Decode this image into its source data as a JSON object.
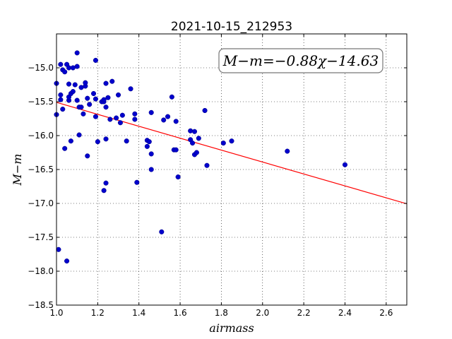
{
  "chart_data": {
    "type": "scatter",
    "title": "2021-10-15_212953",
    "xlabel": "airmass",
    "ylabel": "M−m",
    "xlim": [
      1.0,
      2.7
    ],
    "ylim": [
      -18.5,
      -14.5
    ],
    "y_inverted": true,
    "grid": true,
    "x_ticks": [
      "1.0",
      "1.2",
      "1.4",
      "1.6",
      "1.8",
      "2.0",
      "2.2",
      "2.4",
      "2.6"
    ],
    "y_ticks": [
      "−15.0",
      "−15.5",
      "−16.0",
      "−16.5",
      "−17.0",
      "−17.5",
      "−18.0",
      "−18.5"
    ],
    "annotation": "M−m=−0.88χ−14.63",
    "fit_line": {
      "slope": -0.88,
      "intercept": -14.63,
      "color": "#ff0000"
    },
    "marker_color": "#0000cc",
    "points": [
      [
        1.0,
        -15.23
      ],
      [
        1.0,
        -15.69
      ],
      [
        1.01,
        -17.68
      ],
      [
        1.02,
        -15.4
      ],
      [
        1.02,
        -15.47
      ],
      [
        1.02,
        -14.95
      ],
      [
        1.03,
        -15.61
      ],
      [
        1.03,
        -15.03
      ],
      [
        1.04,
        -15.06
      ],
      [
        1.04,
        -16.19
      ],
      [
        1.05,
        -17.85
      ],
      [
        1.05,
        -14.95
      ],
      [
        1.06,
        -15.0
      ],
      [
        1.06,
        -15.48
      ],
      [
        1.06,
        -15.43
      ],
      [
        1.06,
        -15.24
      ],
      [
        1.07,
        -15.38
      ],
      [
        1.07,
        -16.08
      ],
      [
        1.08,
        -15.35
      ],
      [
        1.08,
        -15.0
      ],
      [
        1.09,
        -15.25
      ],
      [
        1.1,
        -14.78
      ],
      [
        1.1,
        -14.98
      ],
      [
        1.1,
        -15.48
      ],
      [
        1.11,
        -15.58
      ],
      [
        1.11,
        -15.99
      ],
      [
        1.12,
        -15.29
      ],
      [
        1.12,
        -15.58
      ],
      [
        1.13,
        -15.68
      ],
      [
        1.14,
        -15.27
      ],
      [
        1.14,
        -15.22
      ],
      [
        1.15,
        -15.45
      ],
      [
        1.15,
        -16.3
      ],
      [
        1.16,
        -15.54
      ],
      [
        1.18,
        -15.38
      ],
      [
        1.19,
        -15.72
      ],
      [
        1.19,
        -15.46
      ],
      [
        1.19,
        -14.89
      ],
      [
        1.2,
        -16.09
      ],
      [
        1.22,
        -15.5
      ],
      [
        1.23,
        -16.81
      ],
      [
        1.23,
        -15.5
      ],
      [
        1.23,
        -15.47
      ],
      [
        1.24,
        -15.58
      ],
      [
        1.24,
        -16.7
      ],
      [
        1.24,
        -15.23
      ],
      [
        1.24,
        -16.05
      ],
      [
        1.25,
        -15.44
      ],
      [
        1.26,
        -15.76
      ],
      [
        1.27,
        -15.2
      ],
      [
        1.29,
        -15.74
      ],
      [
        1.3,
        -15.4
      ],
      [
        1.31,
        -15.81
      ],
      [
        1.32,
        -15.7
      ],
      [
        1.34,
        -16.08
      ],
      [
        1.36,
        -15.31
      ],
      [
        1.38,
        -15.68
      ],
      [
        1.38,
        -15.76
      ],
      [
        1.39,
        -16.69
      ],
      [
        1.44,
        -16.07
      ],
      [
        1.44,
        -16.16
      ],
      [
        1.45,
        -16.09
      ],
      [
        1.46,
        -16.5
      ],
      [
        1.46,
        -16.27
      ],
      [
        1.46,
        -15.66
      ],
      [
        1.51,
        -17.42
      ],
      [
        1.52,
        -15.77
      ],
      [
        1.54,
        -15.72
      ],
      [
        1.56,
        -15.43
      ],
      [
        1.57,
        -16.21
      ],
      [
        1.58,
        -16.21
      ],
      [
        1.58,
        -15.79
      ],
      [
        1.59,
        -16.61
      ],
      [
        1.65,
        -15.93
      ],
      [
        1.65,
        -16.06
      ],
      [
        1.66,
        -16.11
      ],
      [
        1.67,
        -15.94
      ],
      [
        1.67,
        -16.28
      ],
      [
        1.68,
        -16.25
      ],
      [
        1.69,
        -16.04
      ],
      [
        1.72,
        -15.63
      ],
      [
        1.73,
        -16.44
      ],
      [
        1.81,
        -16.11
      ],
      [
        1.85,
        -16.08
      ],
      [
        2.12,
        -16.23
      ],
      [
        2.4,
        -16.43
      ]
    ]
  }
}
